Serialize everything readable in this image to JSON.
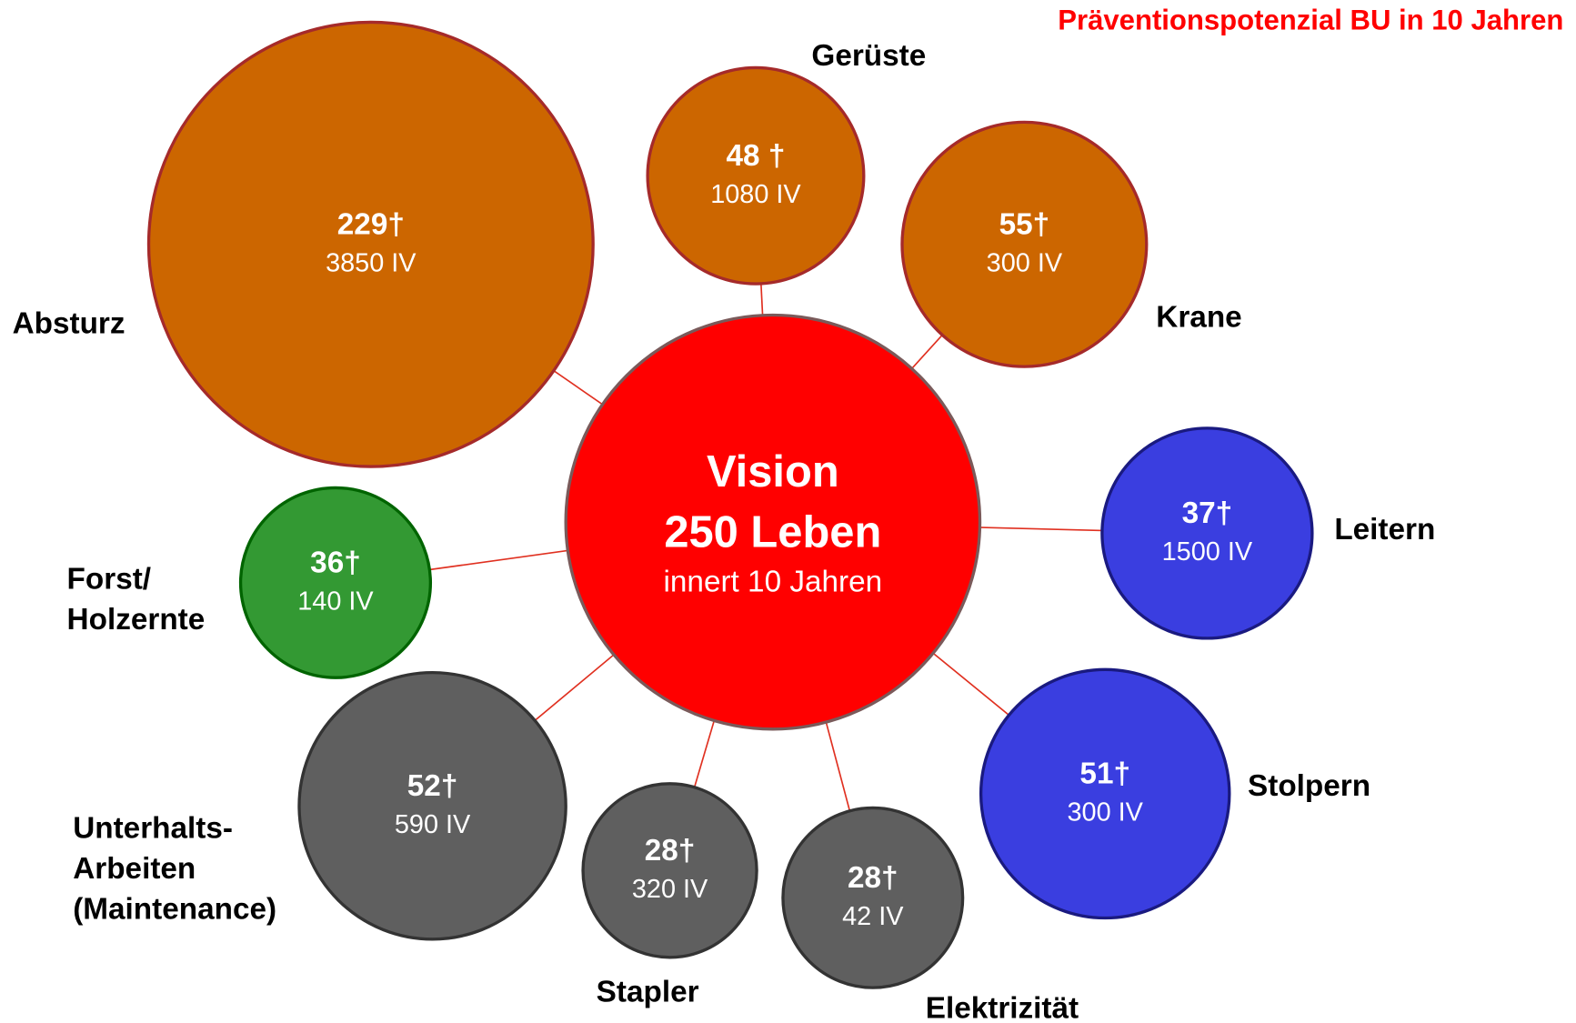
{
  "title": "Präventionspotenzial BU in 10 Jahren",
  "center": {
    "title": "Vision",
    "subtitle": "250 Leben",
    "note": "innert 10 Jahren"
  },
  "nodes": [
    {
      "label": [
        "Absturz"
      ],
      "deaths": "229†",
      "iv": "3850 IV",
      "color": "#cc6600",
      "stroke": "#a52a2a"
    },
    {
      "label": [
        "Gerüste"
      ],
      "deaths": "48 †",
      "iv": "1080 IV",
      "color": "#cc6600",
      "stroke": "#a52a2a"
    },
    {
      "label": [
        "Krane"
      ],
      "deaths": "55†",
      "iv": "300 IV",
      "color": "#cc6600",
      "stroke": "#a52a2a"
    },
    {
      "label": [
        "Forst/",
        "Holzernte"
      ],
      "deaths": "36†",
      "iv": "140 IV",
      "color": "#339933",
      "stroke": "#006400"
    },
    {
      "label": [
        "Leitern"
      ],
      "deaths": "37†",
      "iv": "1500 IV",
      "color": "#3a3ee0",
      "stroke": "#1a1a80"
    },
    {
      "label": [
        "Stolpern"
      ],
      "deaths": "51†",
      "iv": "300 IV",
      "color": "#3a3ee0",
      "stroke": "#1a1a80"
    },
    {
      "label": [
        "Unterhalts-",
        "Arbeiten",
        "(Maintenance)"
      ],
      "deaths": "52†",
      "iv": "590 IV",
      "color": "#5f5f5f",
      "stroke": "#333333"
    },
    {
      "label": [
        "Stapler"
      ],
      "deaths": "28†",
      "iv": "320 IV",
      "color": "#5f5f5f",
      "stroke": "#333333"
    },
    {
      "label": [
        "Elektrizität"
      ],
      "deaths": "28†",
      "iv": "42 IV",
      "color": "#5f5f5f",
      "stroke": "#333333"
    }
  ]
}
